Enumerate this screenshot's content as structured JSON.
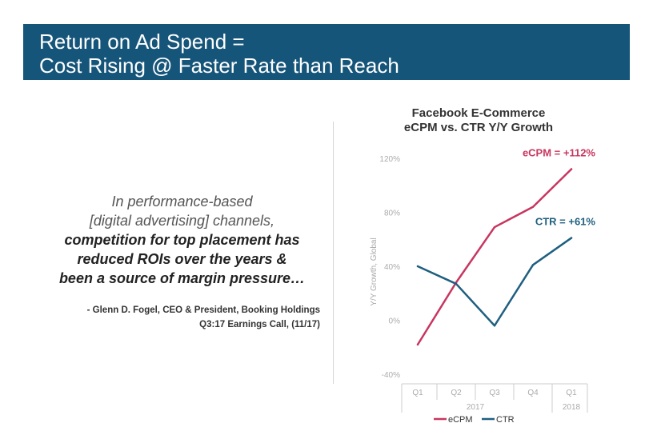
{
  "slide": {
    "title_line1": "Return on Ad Spend =",
    "title_line2": "Cost Rising @ Faster Rate than Reach"
  },
  "quote": {
    "line1": "In performance-based",
    "line2": "[digital advertising] channels,",
    "line3": "competition for top placement has",
    "line4": "reduced ROIs over the years &",
    "line5": "been a source of margin pressure…"
  },
  "attribution": {
    "line1": "- Glenn D. Fogel, CEO & President, Booking Holdings",
    "line2": "Q3:17 Earnings Call, (11/17)"
  },
  "colors": {
    "title_bar": "#16557a",
    "ecpm": "#c8365f",
    "ctr": "#1f5f80"
  },
  "chart_data": {
    "type": "line",
    "title_line1": "Facebook E-Commerce",
    "title_line2": "eCPM vs. CTR Y/Y Growth",
    "ylabel": "Y/Y Growth, Global",
    "categories": [
      "Q1",
      "Q2",
      "Q3",
      "Q4",
      "Q1"
    ],
    "year_labels": [
      {
        "label": "2017",
        "from": 0,
        "to": 3
      },
      {
        "label": "2018",
        "from": 4,
        "to": 4
      }
    ],
    "yticks": [
      -40,
      0,
      40,
      80,
      120
    ],
    "ytick_labels": [
      "-40%",
      "0%",
      "40%",
      "80%",
      "120%"
    ],
    "ylim": [
      -40,
      120
    ],
    "grid": false,
    "legend_position": "bottom",
    "series": [
      {
        "name": "eCPM",
        "color": "#c8365f",
        "values": [
          -18,
          28,
          69,
          84,
          112
        ],
        "annotation": "eCPM  = +112%"
      },
      {
        "name": "CTR",
        "color": "#1f5f80",
        "values": [
          40,
          27,
          -4,
          41,
          61
        ],
        "annotation": "CTR  = +61%"
      }
    ]
  }
}
